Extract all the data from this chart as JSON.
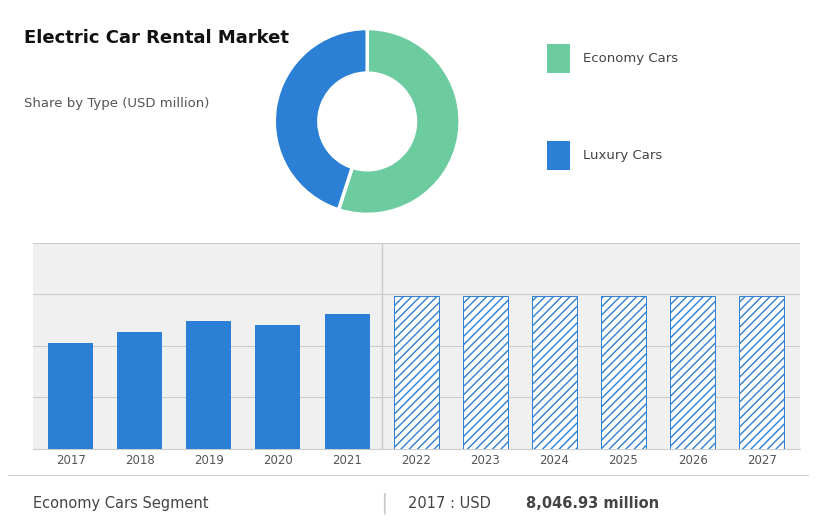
{
  "title": "Electric Car Rental Market",
  "subtitle": "Share by Type (USD million)",
  "top_bg_color": "#c8cfde",
  "bottom_bg_color": "#f0f0f0",
  "white_bg": "#ffffff",
  "footer_bg_color": "#ececec",
  "donut_values": [
    55,
    45
  ],
  "donut_colors": [
    "#6dcba0",
    "#2b7fd4"
  ],
  "donut_labels": [
    "Economy Cars",
    "Luxury Cars"
  ],
  "bar_years": [
    2017,
    2018,
    2019,
    2020,
    2021,
    2022,
    2023,
    2024,
    2025,
    2026,
    2027
  ],
  "bar_values": [
    8.0,
    8.8,
    9.6,
    9.3,
    10.2,
    11.5,
    11.5,
    11.5,
    11.5,
    11.5,
    11.5
  ],
  "bar_solid_count": 5,
  "bar_color": "#2b7fd4",
  "bar_hatch_pattern": "////",
  "bar_hatch_color": "#2b7fd4",
  "footer_segment": "Economy Cars Segment",
  "footer_year": "2017",
  "footer_value": "8,046.93 million",
  "footer_currency": "USD",
  "grid_color": "#cccccc",
  "axis_label_color": "#555555",
  "title_color": "#111111",
  "subtitle_color": "#555555",
  "footer_color": "#444444"
}
